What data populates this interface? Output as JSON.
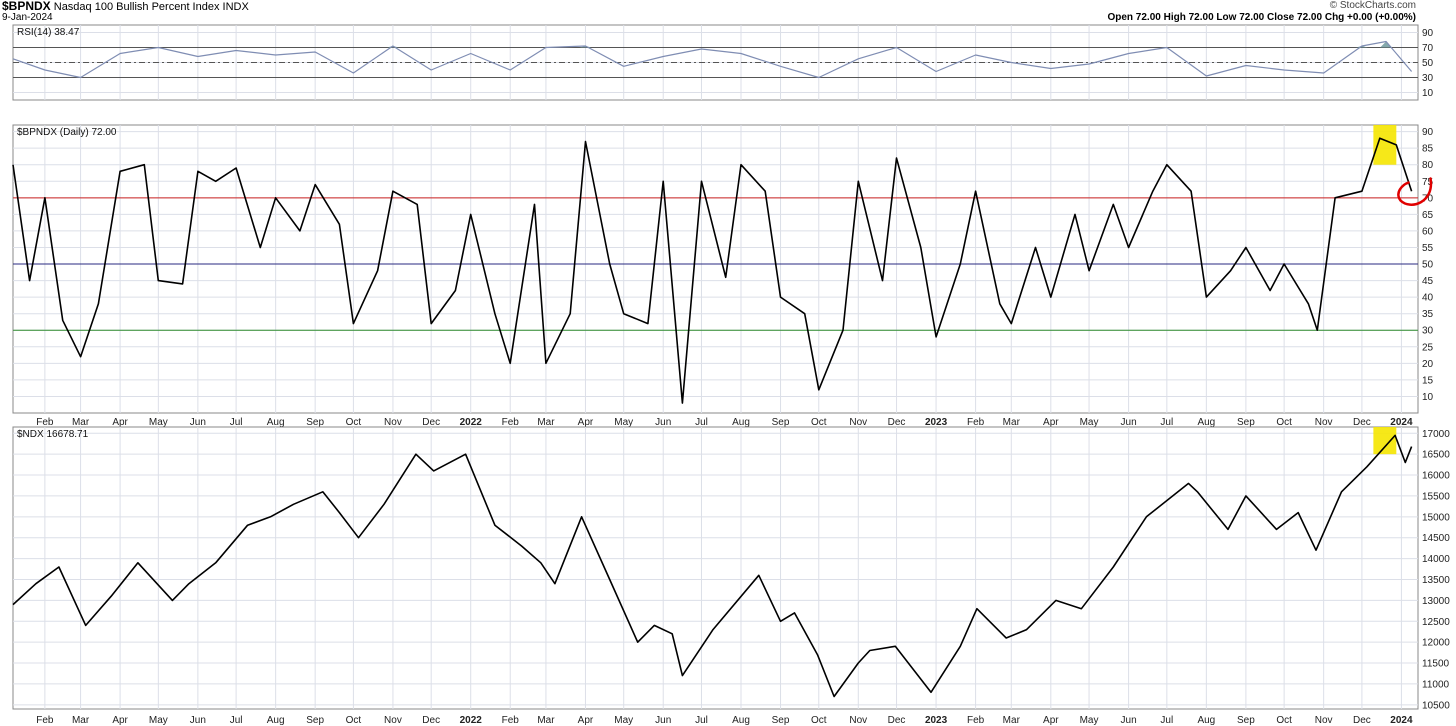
{
  "header": {
    "symbol": "$BPNDX",
    "name": "Nasdaq 100 Bullish Percent Index",
    "exchange": "INDX",
    "date": "9-Jan-2024",
    "open": "Open 72.00",
    "high": "High 72.00",
    "low": "Low 72.00",
    "close": "Close 72.00",
    "change": "Chg +0.00 (+0.00%)",
    "brand": "© StockCharts.com"
  },
  "colors": {
    "line": "#000000",
    "rsi_line": "#7f8db3",
    "rsi_fill": "#6e9a9e",
    "red_level": "#cc2222",
    "blue_level": "#2a2a80",
    "green_level": "#2e8b2e",
    "highlight": "#f5e600",
    "annotation": "#e00000",
    "grid": "#dcdfe8"
  },
  "chart_data": [
    {
      "panel": "rsi",
      "type": "line",
      "label": "RSI(14) 38.47",
      "yticks": [
        10,
        30,
        50,
        70,
        90
      ],
      "ylim": [
        0,
        100
      ],
      "levels": [
        30,
        50,
        70
      ],
      "x": [
        "2021-01-07",
        "2021-02-01",
        "2021-03-01",
        "2021-04-01",
        "2021-05-01",
        "2021-06-01",
        "2021-07-01",
        "2021-08-01",
        "2021-09-01",
        "2021-10-01",
        "2021-11-01",
        "2021-12-01",
        "2022-01-01",
        "2022-02-01",
        "2022-03-01",
        "2022-04-01",
        "2022-05-01",
        "2022-06-01",
        "2022-07-01",
        "2022-08-01",
        "2022-09-01",
        "2022-10-01",
        "2022-11-01",
        "2022-12-01",
        "2023-01-01",
        "2023-02-01",
        "2023-03-01",
        "2023-04-01",
        "2023-05-01",
        "2023-06-01",
        "2023-07-01",
        "2023-08-01",
        "2023-09-01",
        "2023-10-01",
        "2023-11-01",
        "2023-12-01",
        "2023-12-20",
        "2024-01-09"
      ],
      "values": [
        55,
        40,
        30,
        62,
        70,
        58,
        66,
        60,
        64,
        36,
        72,
        40,
        62,
        40,
        70,
        72,
        45,
        58,
        68,
        62,
        45,
        30,
        55,
        70,
        38,
        60,
        50,
        42,
        48,
        62,
        70,
        32,
        46,
        40,
        36,
        72,
        78,
        38
      ]
    },
    {
      "panel": "bpndx",
      "type": "line",
      "label": "$BPNDX (Daily) 72.00",
      "yticks": [
        10,
        15,
        20,
        25,
        30,
        35,
        40,
        45,
        50,
        55,
        60,
        65,
        70,
        75,
        80,
        85,
        90
      ],
      "ylim": [
        5,
        92
      ],
      "levels": [
        30,
        50,
        70
      ],
      "x": [
        "2021-01-07",
        "2021-01-20",
        "2021-02-01",
        "2021-02-15",
        "2021-03-01",
        "2021-03-15",
        "2021-04-01",
        "2021-04-20",
        "2021-05-01",
        "2021-05-20",
        "2021-06-01",
        "2021-06-15",
        "2021-07-01",
        "2021-07-20",
        "2021-08-01",
        "2021-08-20",
        "2021-09-01",
        "2021-09-20",
        "2021-10-01",
        "2021-10-20",
        "2021-11-01",
        "2021-11-20",
        "2021-12-01",
        "2021-12-20",
        "2022-01-01",
        "2022-01-20",
        "2022-02-01",
        "2022-02-20",
        "2022-03-01",
        "2022-03-20",
        "2022-04-01",
        "2022-04-20",
        "2022-05-01",
        "2022-05-20",
        "2022-06-01",
        "2022-06-16",
        "2022-07-01",
        "2022-07-20",
        "2022-08-01",
        "2022-08-20",
        "2022-09-01",
        "2022-09-20",
        "2022-10-01",
        "2022-10-20",
        "2022-11-01",
        "2022-11-20",
        "2022-12-01",
        "2022-12-20",
        "2023-01-01",
        "2023-01-20",
        "2023-02-01",
        "2023-02-20",
        "2023-03-01",
        "2023-03-20",
        "2023-04-01",
        "2023-04-20",
        "2023-05-01",
        "2023-05-20",
        "2023-06-01",
        "2023-06-20",
        "2023-07-01",
        "2023-07-20",
        "2023-08-01",
        "2023-08-20",
        "2023-09-01",
        "2023-09-20",
        "2023-10-01",
        "2023-10-20",
        "2023-10-27",
        "2023-11-10",
        "2023-12-01",
        "2023-12-15",
        "2023-12-28",
        "2024-01-09"
      ],
      "values": [
        80,
        45,
        70,
        33,
        22,
        38,
        78,
        80,
        45,
        44,
        78,
        75,
        79,
        55,
        70,
        60,
        74,
        62,
        32,
        48,
        72,
        68,
        32,
        42,
        65,
        35,
        20,
        68,
        20,
        35,
        87,
        50,
        35,
        32,
        75,
        8,
        75,
        46,
        80,
        72,
        40,
        35,
        12,
        30,
        75,
        45,
        82,
        55,
        28,
        50,
        72,
        38,
        32,
        55,
        40,
        65,
        48,
        68,
        55,
        72,
        80,
        72,
        40,
        48,
        55,
        42,
        50,
        38,
        30,
        70,
        72,
        88,
        86,
        72
      ],
      "annotations": [
        {
          "type": "highlight",
          "x": [
            "2023-12-10",
            "2023-12-28"
          ],
          "y": [
            80,
            93
          ]
        },
        {
          "type": "circle",
          "x": "2024-01-05",
          "y": 71
        }
      ]
    },
    {
      "panel": "ndx",
      "type": "line",
      "label": "$NDX 16678.71",
      "yticks": [
        10500,
        11000,
        11500,
        12000,
        12500,
        13000,
        13500,
        14000,
        14500,
        15000,
        15500,
        16000,
        16500,
        17000
      ],
      "ylim": [
        10400,
        17150
      ],
      "x": [
        "2021-01-07",
        "2021-01-25",
        "2021-02-12",
        "2021-03-05",
        "2021-03-25",
        "2021-04-15",
        "2021-05-12",
        "2021-05-25",
        "2021-06-15",
        "2021-07-10",
        "2021-07-28",
        "2021-08-15",
        "2021-09-07",
        "2021-09-20",
        "2021-10-05",
        "2021-10-25",
        "2021-11-19",
        "2021-12-03",
        "2021-12-28",
        "2022-01-20",
        "2022-02-10",
        "2022-02-25",
        "2022-03-08",
        "2022-03-29",
        "2022-04-20",
        "2022-05-12",
        "2022-05-25",
        "2022-06-08",
        "2022-06-16",
        "2022-07-10",
        "2022-08-15",
        "2022-09-01",
        "2022-09-12",
        "2022-09-30",
        "2022-10-13",
        "2022-11-01",
        "2022-11-10",
        "2022-11-30",
        "2022-12-28",
        "2023-01-20",
        "2023-02-02",
        "2023-02-25",
        "2023-03-13",
        "2023-04-05",
        "2023-04-25",
        "2023-05-20",
        "2023-06-15",
        "2023-07-18",
        "2023-07-25",
        "2023-08-18",
        "2023-09-01",
        "2023-09-25",
        "2023-10-12",
        "2023-10-26",
        "2023-11-15",
        "2023-12-05",
        "2023-12-27",
        "2024-01-04",
        "2024-01-09"
      ],
      "values": [
        12900,
        13400,
        13800,
        12400,
        13100,
        13900,
        13000,
        13400,
        13900,
        14800,
        15000,
        15300,
        15600,
        15100,
        14500,
        15300,
        16500,
        16100,
        16500,
        14800,
        14300,
        13900,
        13400,
        15000,
        13500,
        12000,
        12400,
        12200,
        11200,
        12300,
        13600,
        12500,
        12700,
        11700,
        10700,
        11500,
        11800,
        11900,
        10800,
        11900,
        12800,
        12100,
        12300,
        13000,
        12800,
        13800,
        15000,
        15800,
        15600,
        14700,
        15500,
        14700,
        15100,
        14200,
        15600,
        16200,
        16950,
        16300,
        16680
      ],
      "annotations": [
        {
          "type": "highlight",
          "x": [
            "2023-12-10",
            "2023-12-28"
          ],
          "y": [
            16500,
            17200
          ]
        }
      ]
    }
  ],
  "x_axis": {
    "labels": [
      {
        "date": "2021-02-01",
        "text": "Feb",
        "bold": false
      },
      {
        "date": "2021-03-01",
        "text": "Mar",
        "bold": false
      },
      {
        "date": "2021-04-01",
        "text": "Apr",
        "bold": false
      },
      {
        "date": "2021-05-01",
        "text": "May",
        "bold": false
      },
      {
        "date": "2021-06-01",
        "text": "Jun",
        "bold": false
      },
      {
        "date": "2021-07-01",
        "text": "Jul",
        "bold": false
      },
      {
        "date": "2021-08-01",
        "text": "Aug",
        "bold": false
      },
      {
        "date": "2021-09-01",
        "text": "Sep",
        "bold": false
      },
      {
        "date": "2021-10-01",
        "text": "Oct",
        "bold": false
      },
      {
        "date": "2021-11-01",
        "text": "Nov",
        "bold": false
      },
      {
        "date": "2021-12-01",
        "text": "Dec",
        "bold": false
      },
      {
        "date": "2022-01-01",
        "text": "2022",
        "bold": true
      },
      {
        "date": "2022-02-01",
        "text": "Feb",
        "bold": false
      },
      {
        "date": "2022-03-01",
        "text": "Mar",
        "bold": false
      },
      {
        "date": "2022-04-01",
        "text": "Apr",
        "bold": false
      },
      {
        "date": "2022-05-01",
        "text": "May",
        "bold": false
      },
      {
        "date": "2022-06-01",
        "text": "Jun",
        "bold": false
      },
      {
        "date": "2022-07-01",
        "text": "Jul",
        "bold": false
      },
      {
        "date": "2022-08-01",
        "text": "Aug",
        "bold": false
      },
      {
        "date": "2022-09-01",
        "text": "Sep",
        "bold": false
      },
      {
        "date": "2022-10-01",
        "text": "Oct",
        "bold": false
      },
      {
        "date": "2022-11-01",
        "text": "Nov",
        "bold": false
      },
      {
        "date": "2022-12-01",
        "text": "Dec",
        "bold": false
      },
      {
        "date": "2023-01-01",
        "text": "2023",
        "bold": true
      },
      {
        "date": "2023-02-01",
        "text": "Feb",
        "bold": false
      },
      {
        "date": "2023-03-01",
        "text": "Mar",
        "bold": false
      },
      {
        "date": "2023-04-01",
        "text": "Apr",
        "bold": false
      },
      {
        "date": "2023-05-01",
        "text": "May",
        "bold": false
      },
      {
        "date": "2023-06-01",
        "text": "Jun",
        "bold": false
      },
      {
        "date": "2023-07-01",
        "text": "Jul",
        "bold": false
      },
      {
        "date": "2023-08-01",
        "text": "Aug",
        "bold": false
      },
      {
        "date": "2023-09-01",
        "text": "Sep",
        "bold": false
      },
      {
        "date": "2023-10-01",
        "text": "Oct",
        "bold": false
      },
      {
        "date": "2023-11-01",
        "text": "Nov",
        "bold": false
      },
      {
        "date": "2023-12-01",
        "text": "Dec",
        "bold": false
      },
      {
        "date": "2024-01-01",
        "text": "2024",
        "bold": true
      }
    ]
  }
}
